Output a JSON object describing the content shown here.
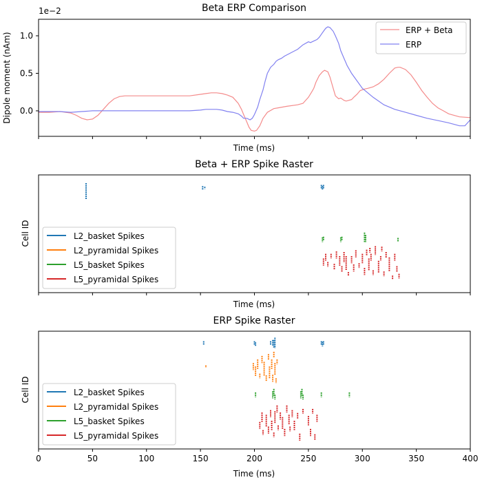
{
  "figure": {
    "colors": {
      "erp_beta": "#f48a8a",
      "erp": "#8080f0",
      "L2_basket": "#1f77b4",
      "L2_pyramidal": "#ff7f0e",
      "L5_basket": "#2ca02c",
      "L5_pyramidal": "#d62728"
    }
  },
  "chart_data": [
    {
      "type": "line",
      "title": "Beta ERP Comparison",
      "xlabel": "Time (ms)",
      "ylabel": "Dipole moment (nAm)",
      "scale_label": "1e−2",
      "xlim": [
        0,
        400
      ],
      "ylim": [
        -0.34,
        1.22
      ],
      "yticks": [
        0.0,
        0.5,
        1.0
      ],
      "ytick_labels": [
        "0.0",
        "0.5",
        "1.0"
      ],
      "xticks": [
        0,
        50,
        100,
        150,
        200,
        250,
        300,
        350,
        400
      ],
      "show_xtick_labels": false,
      "grid": false,
      "legend": "top-right",
      "series": [
        {
          "name": "ERP + Beta",
          "color_key": "erp_beta",
          "x": [
            0,
            10,
            20,
            30,
            35,
            40,
            45,
            50,
            55,
            60,
            65,
            70,
            75,
            80,
            85,
            90,
            100,
            120,
            140,
            150,
            155,
            160,
            165,
            170,
            175,
            180,
            185,
            188,
            190,
            193,
            195,
            197,
            200,
            202,
            205,
            208,
            212,
            218,
            222,
            230,
            240,
            245,
            250,
            253,
            255,
            257,
            260,
            263,
            265,
            268,
            270,
            273,
            275,
            278,
            280,
            283,
            285,
            290,
            292,
            295,
            298,
            302,
            305,
            310,
            315,
            320,
            325,
            330,
            333,
            335,
            340,
            345,
            350,
            355,
            360,
            365,
            370,
            375,
            380,
            390,
            400
          ],
          "y": [
            -0.02,
            -0.02,
            -0.01,
            -0.03,
            -0.06,
            -0.1,
            -0.12,
            -0.11,
            -0.06,
            0.02,
            0.1,
            0.16,
            0.19,
            0.2,
            0.2,
            0.2,
            0.2,
            0.2,
            0.2,
            0.22,
            0.23,
            0.24,
            0.24,
            0.23,
            0.21,
            0.18,
            0.1,
            0.02,
            -0.05,
            -0.15,
            -0.22,
            -0.26,
            -0.27,
            -0.26,
            -0.2,
            -0.1,
            -0.02,
            0.03,
            0.04,
            0.06,
            0.08,
            0.1,
            0.18,
            0.25,
            0.3,
            0.38,
            0.47,
            0.52,
            0.54,
            0.52,
            0.45,
            0.3,
            0.2,
            0.16,
            0.17,
            0.14,
            0.13,
            0.15,
            0.18,
            0.22,
            0.27,
            0.29,
            0.3,
            0.32,
            0.36,
            0.42,
            0.5,
            0.57,
            0.58,
            0.58,
            0.55,
            0.48,
            0.38,
            0.27,
            0.18,
            0.1,
            0.04,
            0.0,
            -0.04,
            -0.08,
            -0.09
          ]
        },
        {
          "name": "ERP",
          "color_key": "erp",
          "x": [
            0,
            20,
            30,
            40,
            50,
            60,
            100,
            140,
            150,
            155,
            160,
            165,
            170,
            175,
            180,
            185,
            188,
            190,
            193,
            196,
            198,
            200,
            203,
            205,
            208,
            210,
            212,
            215,
            218,
            220,
            222,
            225,
            228,
            232,
            236,
            240,
            245,
            250,
            252,
            255,
            258,
            260,
            262,
            264,
            266,
            268,
            270,
            273,
            275,
            278,
            280,
            283,
            286,
            290,
            295,
            300,
            310,
            320,
            330,
            340,
            350,
            360,
            370,
            380,
            385,
            390,
            395,
            400
          ],
          "y": [
            -0.01,
            -0.01,
            -0.02,
            -0.01,
            0.0,
            0.0,
            0.0,
            0.0,
            0.01,
            0.02,
            0.02,
            0.02,
            0.01,
            -0.01,
            -0.02,
            -0.04,
            -0.07,
            -0.1,
            -0.1,
            -0.12,
            -0.1,
            -0.05,
            0.05,
            0.15,
            0.28,
            0.4,
            0.5,
            0.58,
            0.62,
            0.66,
            0.68,
            0.7,
            0.73,
            0.76,
            0.79,
            0.82,
            0.88,
            0.92,
            0.91,
            0.93,
            0.95,
            0.98,
            1.02,
            1.06,
            1.1,
            1.12,
            1.11,
            1.06,
            1.0,
            0.9,
            0.8,
            0.7,
            0.6,
            0.5,
            0.4,
            0.3,
            0.18,
            0.08,
            0.02,
            -0.02,
            -0.06,
            -0.1,
            -0.13,
            -0.16,
            -0.18,
            -0.2,
            -0.2,
            -0.12
          ]
        }
      ]
    },
    {
      "type": "scatter",
      "title": "Beta + ERP Spike Raster",
      "xlabel": "Time (ms)",
      "ylabel": "Cell ID",
      "xlim": [
        0,
        400
      ],
      "ylim": [
        0,
        100
      ],
      "xticks": [
        0,
        50,
        100,
        150,
        200,
        250,
        300,
        350,
        400
      ],
      "show_xtick_labels": false,
      "legend": "lower-left",
      "series": [
        {
          "name": "L2_basket Spikes",
          "color_key": "L2_basket",
          "points": [
            [
              44,
              86,
              14
            ],
            [
              152,
              89,
              3
            ],
            [
              154,
              89,
              2
            ],
            [
              262,
              90,
              3
            ],
            [
              263,
              89,
              3
            ],
            [
              264,
              90,
              3
            ]
          ]
        },
        {
          "name": "L2_pyramidal Spikes",
          "color_key": "L2_pyramidal",
          "points": []
        },
        {
          "name": "L5_basket Spikes",
          "color_key": "L5_basket",
          "points": [
            [
              263,
              45,
              4
            ],
            [
              264,
              46,
              3
            ],
            [
              280,
              45,
              4
            ],
            [
              281,
              46,
              3
            ],
            [
              302,
              47,
              8
            ],
            [
              303,
              46,
              6
            ],
            [
              333,
              45,
              3
            ]
          ]
        },
        {
          "name": "L5_pyramidal Spikes",
          "color_key": "L5_pyramidal",
          "points": [
            [
              264,
              26,
              6
            ],
            [
              266,
              30,
              6
            ],
            [
              268,
              24,
              4
            ],
            [
              271,
              31,
              4
            ],
            [
              274,
              22,
              5
            ],
            [
              276,
              32,
              6
            ],
            [
              279,
              27,
              8
            ],
            [
              281,
              20,
              5
            ],
            [
              283,
              30,
              9
            ],
            [
              285,
              25,
              12
            ],
            [
              287,
              16,
              3
            ],
            [
              290,
              28,
              6
            ],
            [
              292,
              21,
              6
            ],
            [
              294,
              33,
              6
            ],
            [
              297,
              23,
              4
            ],
            [
              300,
              29,
              8
            ],
            [
              302,
              18,
              6
            ],
            [
              304,
              34,
              5
            ],
            [
              306,
              24,
              10
            ],
            [
              308,
              30,
              6
            ],
            [
              310,
              17,
              4
            ],
            [
              312,
              34,
              4
            ],
            [
              315,
              22,
              10
            ],
            [
              317,
              29,
              4
            ],
            [
              320,
              16,
              4
            ],
            [
              322,
              32,
              5
            ],
            [
              325,
              24,
              12
            ],
            [
              328,
              13,
              3
            ],
            [
              330,
              30,
              6
            ],
            [
              332,
              20,
              5
            ],
            [
              334,
              14,
              4
            ],
            [
              307,
              36,
              4
            ],
            [
              312,
              38,
              3
            ],
            [
              318,
              37,
              4
            ]
          ]
        }
      ]
    },
    {
      "type": "scatter",
      "title": "ERP Spike Raster",
      "xlabel": "Time (ms)",
      "ylabel": "Cell ID",
      "xlim": [
        0,
        400
      ],
      "ylim": [
        0,
        100
      ],
      "xticks": [
        0,
        50,
        100,
        150,
        200,
        250,
        300,
        350,
        400
      ],
      "xtick_labels": [
        "0",
        "50",
        "100",
        "150",
        "200",
        "250",
        "300",
        "350",
        "400"
      ],
      "show_xtick_labels": true,
      "legend": "lower-left",
      "series": [
        {
          "name": "L2_basket Spikes",
          "color_key": "L2_basket",
          "points": [
            [
              153,
              90,
              3
            ],
            [
              200,
              90,
              3
            ],
            [
              201,
              89,
              3
            ],
            [
              215,
              90,
              3
            ],
            [
              217,
              90,
              5
            ],
            [
              218,
              89,
              7
            ],
            [
              219,
              90,
              9
            ],
            [
              262,
              90,
              3
            ],
            [
              263,
              89,
              4
            ],
            [
              264,
              90,
              3
            ]
          ]
        },
        {
          "name": "L2_pyramidal Spikes",
          "color_key": "L2_pyramidal",
          "points": [
            [
              155,
              70,
              2
            ],
            [
              199,
              70,
              6
            ],
            [
              201,
              66,
              8
            ],
            [
              203,
              72,
              8
            ],
            [
              205,
              62,
              4
            ],
            [
              207,
              76,
              6
            ],
            [
              209,
              68,
              12
            ],
            [
              211,
              60,
              5
            ],
            [
              213,
              78,
              5
            ],
            [
              214,
              65,
              10
            ],
            [
              216,
              72,
              8
            ],
            [
              217,
              60,
              6
            ],
            [
              218,
              80,
              5
            ],
            [
              219,
              68,
              10
            ],
            [
              220,
              58,
              4
            ],
            [
              221,
              74,
              4
            ]
          ]
        },
        {
          "name": "L5_basket Spikes",
          "color_key": "L5_basket",
          "points": [
            [
              201,
              46,
              4
            ],
            [
              217,
              46,
              6
            ],
            [
              218,
              48,
              6
            ],
            [
              219,
              44,
              4
            ],
            [
              243,
              46,
              6
            ],
            [
              244,
              48,
              6
            ],
            [
              245,
              44,
              4
            ],
            [
              262,
              46,
              4
            ],
            [
              288,
              46,
              4
            ]
          ]
        },
        {
          "name": "L5_pyramidal Spikes",
          "color_key": "L5_pyramidal",
          "points": [
            [
              205,
              20,
              6
            ],
            [
              207,
              27,
              8
            ],
            [
              208,
              14,
              4
            ],
            [
              211,
              24,
              10
            ],
            [
              213,
              16,
              6
            ],
            [
              215,
              30,
              6
            ],
            [
              216,
              20,
              8
            ],
            [
              218,
              12,
              4
            ],
            [
              219,
              27,
              10
            ],
            [
              221,
              34,
              6
            ],
            [
              222,
              18,
              4
            ],
            [
              224,
              28,
              6
            ],
            [
              226,
              22,
              10
            ],
            [
              228,
              14,
              6
            ],
            [
              230,
              34,
              6
            ],
            [
              232,
              25,
              8
            ],
            [
              233,
              17,
              4
            ],
            [
              235,
              30,
              6
            ],
            [
              237,
              20,
              8
            ],
            [
              240,
              28,
              5
            ],
            [
              242,
              10,
              6
            ],
            [
              245,
              32,
              4
            ],
            [
              250,
              24,
              8
            ],
            [
              252,
              14,
              6
            ],
            [
              254,
              32,
              4
            ],
            [
              256,
              10,
              5
            ],
            [
              258,
              26,
              6
            ]
          ]
        }
      ]
    }
  ]
}
